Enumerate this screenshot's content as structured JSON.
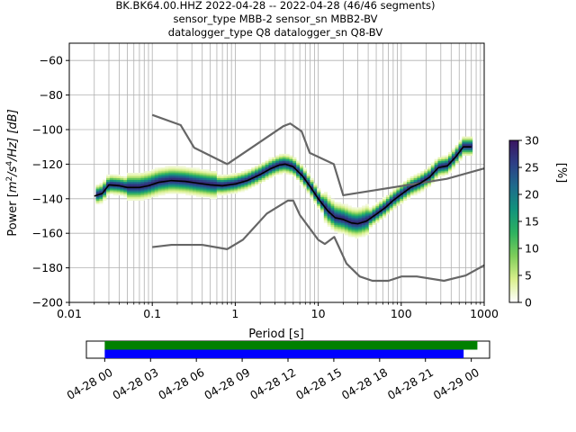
{
  "title_lines": [
    "BK.BK64.00.HHZ   2022-04-28 -- 2022-04-28  (46/46 segments)",
    "sensor_type MBB-2 sensor_sn MBB2-BV",
    "datalogger_type Q8 datalogger_sn Q8-BV"
  ],
  "chart_data": [
    {
      "type": "heatmap",
      "xlabel": "Period [s]",
      "ylabel_parts": {
        "a": "Power [",
        "m": "m",
        "e1": "2",
        "mid": "/s",
        "e2": "4",
        "end": "/Hz] [dB]"
      },
      "x_scale": "log",
      "xlim": [
        0.01,
        1000
      ],
      "ylim": [
        -200,
        -50
      ],
      "x_ticks": [
        0.01,
        0.1,
        1,
        10,
        100,
        1000
      ],
      "x_tick_labels": [
        "0.01",
        "0.1",
        "1",
        "10",
        "100",
        "1000"
      ],
      "y_ticks": [
        -200,
        -180,
        -160,
        -140,
        -120,
        -100,
        -80,
        -60
      ],
      "y_tick_labels": [
        "−200",
        "−180",
        "−160",
        "−140",
        "−120",
        "−100",
        "−80",
        "−60"
      ],
      "grid": true,
      "colorbar": {
        "label": "[%]",
        "range": [
          0,
          30
        ],
        "ticks": [
          0,
          5,
          10,
          15,
          20,
          25,
          30
        ],
        "tick_labels": [
          "0",
          "5",
          "10",
          "15",
          "20",
          "25",
          "30"
        ],
        "colormap": [
          "#ffffff",
          "#d9ef8b",
          "#7fcd5a",
          "#2eb25f",
          "#12937c",
          "#1e6b8c",
          "#2d3f86",
          "#3a1461"
        ]
      },
      "series": [
        {
          "style": "noise model (high)",
          "color": "#666666",
          "x": [
            0.1,
            0.22,
            0.32,
            0.8,
            3.8,
            4.6,
            6.3,
            7.9,
            15.4,
            20,
            354.8,
            10000
          ],
          "y": [
            -91.5,
            -97.4,
            -110.5,
            -120,
            -98,
            -96.5,
            -101,
            -113.5,
            -120,
            -138,
            -128.5,
            -109
          ]
        },
        {
          "style": "noise model (low)",
          "color": "#666666",
          "x": [
            0.1,
            0.17,
            0.4,
            0.8,
            1.24,
            2.4,
            4.3,
            5.0,
            6.0,
            10,
            12,
            15.6,
            21.9,
            31.6,
            45,
            70,
            101,
            154,
            328,
            600,
            10000
          ],
          "y": [
            -168,
            -166.7,
            -166.7,
            -169.2,
            -163.7,
            -148.6,
            -141.1,
            -141.1,
            -149.4,
            -163.8,
            -166.2,
            -162.1,
            -177.5,
            -185,
            -187.5,
            -187.5,
            -185,
            -185,
            -187.5,
            -184.4,
            -151.9
          ]
        },
        {
          "style": "median",
          "color": "#000000",
          "x": [
            0.02,
            0.025,
            0.03,
            0.04,
            0.05,
            0.07,
            0.09,
            0.12,
            0.17,
            0.25,
            0.35,
            0.5,
            0.7,
            1.0,
            1.4,
            2.0,
            2.7,
            3.4,
            4.0,
            5.0,
            6.5,
            8.0,
            10.0,
            13.0,
            16.0,
            20.0,
            25.0,
            30.0,
            38.0,
            50.0,
            65.0,
            80.0,
            100.0,
            130.0,
            170.0,
            220.0,
            280.0,
            360.0,
            450.0,
            560.0,
            700.0
          ],
          "y": [
            -138.5,
            -137.0,
            -132.0,
            -132.5,
            -133.5,
            -133.5,
            -132.5,
            -130.5,
            -129.5,
            -130.0,
            -131.0,
            -132.0,
            -132.5,
            -131.5,
            -129.5,
            -126.0,
            -122.5,
            -120.5,
            -120.0,
            -121.5,
            -127.0,
            -133.0,
            -140.0,
            -147.0,
            -151.0,
            -152.0,
            -154.0,
            -154.5,
            -153.0,
            -149.0,
            -145.0,
            -141.0,
            -137.5,
            -133.5,
            -131.0,
            -127.5,
            -122.0,
            -121.0,
            -116.0,
            -110.0,
            -110.0
          ]
        }
      ]
    },
    {
      "type": "timeline",
      "x_tick_labels": [
        "04-28 00",
        "04-28 03",
        "04-28 06",
        "04-28 09",
        "04-28 12",
        "04-28 15",
        "04-28 18",
        "04-28 21",
        "04-29 00"
      ],
      "x_ticks_hours": [
        0,
        3,
        6,
        9,
        12,
        15,
        18,
        21,
        24
      ],
      "xlim_hours": [
        -1.2,
        25.2
      ],
      "bars": [
        {
          "color": "#008000",
          "start_hours": 0,
          "end_hours": 24.4
        },
        {
          "color": "#0000ff",
          "start_hours": 0,
          "end_hours": 23.5
        }
      ]
    }
  ]
}
